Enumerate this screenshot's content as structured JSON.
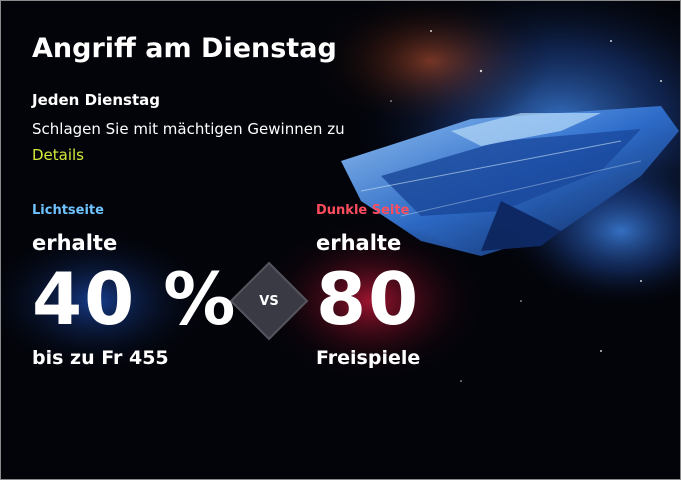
{
  "header": {
    "title": "Angriff am Dienstag",
    "subtitle": "Jeden Dienstag",
    "description": "Schlagen Sie mit mächtigen Gewinnen zu",
    "link": "Details"
  },
  "offers": [
    {
      "label": "Lichtseite",
      "action": "erhalte",
      "amount": "40 %",
      "detail": "bis zu Fr 455"
    },
    {
      "label": "Dunkle Seite",
      "action": "erhalte",
      "amount": "80",
      "detail": "Freispiele"
    }
  ],
  "versus": "VS"
}
